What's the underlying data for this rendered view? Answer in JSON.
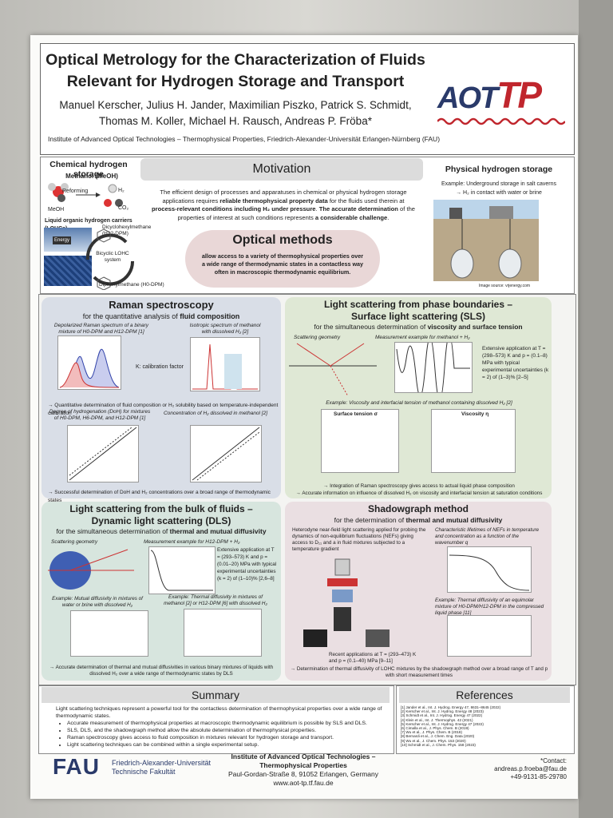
{
  "header": {
    "title_lines": [
      "Optical Metrology for the Characterization of Fluids",
      "Relevant for Hydrogen Storage and Transport"
    ],
    "authors": [
      "Manuel Kerscher, Julius H. Jander, Maximilian Piszko, Patrick S. Schmidt,",
      "Thomas M. Koller, Michael H. Rausch, Andreas P. Fröba*"
    ],
    "affiliation": "Institute of Advanced Optical Technologies – Thermophysical Properties, Friedrich-Alexander-Universität Erlangen-Nürnberg (FAU)",
    "logo": [
      "AOT",
      "TP"
    ]
  },
  "chemical": {
    "title": "Chemical hydrogen storage",
    "methanol": "Methanol (MeOH)",
    "reforming": "Reforming",
    "meoh": "MeOH",
    "h2": "H₂",
    "co2": "CO₂",
    "lohc": "Liquid organic hydrogen carriers (LOHCs)",
    "h12": "Dicyclohexylmethane (H12-DPM)",
    "system": "Bicyclic LOHC system",
    "h0": "Diphenylmethane (H0-DPM)",
    "energy": "Energy"
  },
  "motivation": {
    "title": "Motivation",
    "text": [
      "The efficient design of processes and apparatuses in chemical or physical hydrogen storage applications requires ",
      "reliable thermophysical property data",
      " for the fluids used therein at ",
      "process-relevant conditions including H₂ under pressure",
      ". ",
      "The accurate determination",
      " of the properties of interest at such conditions represents ",
      "a considerable challenge",
      "."
    ]
  },
  "optical": {
    "title": "Optical methods",
    "text": "allow access to a variety of thermophysical properties over a wide range of thermodynamic states in a contactless way often in macroscopic thermodynamic equilibrium."
  },
  "physical": {
    "title": "Physical hydrogen storage",
    "example": "Example: Underground storage in salt caverns",
    "bullet": "→ H₂ in contact with water or brine",
    "source": "Image source: vrjenergy.com"
  },
  "raman": {
    "title": "Raman spectroscopy",
    "subtitle": [
      "for the quantitative analysis of ",
      "fluid composition"
    ],
    "captions": [
      "Depolarized Raman spectrum of a binary mixture of H0-DPM and H12-DPM [1]",
      "Isotropic spectrum of methanol with dissolved H₂ [2]",
      "Degree of hydrogenation (DoH) for mixtures of H0-DPM, H6-DPM, and H12-DPM [1]",
      "Concentration of H₂ dissolved in methanol [2]"
    ],
    "calibration": "K: calibration factor",
    "notes": [
      "→ Quantitative determination of fluid composition or H₂ solubility based on temperature-independent calibration",
      "→ Successful determination of DoH and H₂ concentrations over a broad range of thermodynamic states"
    ]
  },
  "sls": {
    "title": [
      "Light scattering from phase boundaries –",
      "Surface light scattering (SLS)"
    ],
    "subtitle": [
      "for the simultaneous determination of ",
      "viscosity and surface tension"
    ],
    "captions": [
      "Scattering geometry",
      "Measurement example for methanol + H₂",
      "Example: Viscosity and interfacial tension of methanol containing dissolved H₂ [2]"
    ],
    "application": "Extensive application at T = (298–573) K and p = (0.1–8) MPa with typical experimental uncertainties (k = 2) of (1–3)% [2–5]",
    "plot_labels": [
      "Surface tension σ",
      "Viscosity η"
    ],
    "notes": [
      "→ Integration of Raman spectroscopy gives access to actual liquid phase composition",
      "→ Accurate information on influence of dissolved H₂ on viscosity and interfacial tension at saturation conditions"
    ]
  },
  "dls": {
    "title": [
      "Light scattering from the bulk of fluids –",
      "Dynamic light scattering (DLS)"
    ],
    "subtitle": [
      "for the simultaneous determination of ",
      "thermal and mutual diffusivity"
    ],
    "captions": [
      "Scattering geometry",
      "Measurement example for H12-DPM + H₂",
      "Example: Mutual diffusivity in mixtures of water or brine with dissolved H₂",
      "Example: Thermal diffusivity in mixtures of methanol [2] or H12-DPM [6] with dissolved H₂"
    ],
    "application": "Extensive application at T = (293–573) K and p = (0.01–20) MPa with typical experimental uncertainties (k = 2) of (1–10)% [2,6–8]",
    "note": "→ Accurate determination of thermal and mutual diffusivities in various binary mixtures of liquids with dissolved H₂ over a wide range of thermodynamic states by DLS"
  },
  "shadowgraph": {
    "title": "Shadowgraph method",
    "subtitle": [
      "for the determination of ",
      "thermal and mutual diffusivity"
    ],
    "intro": "Heterodyne near-field light scattering applied for probing the dynamics of non-equilibrium fluctuations (NEFs) giving access to D₁₁ and a in fluid mixtures subjected to a temperature gradient",
    "captions": [
      "Characteristic lifetimes of NEFs in temperature and concentration as a function of the wavenumber q",
      "Example: Thermal diffusivity of an equimolar mixture of H0-DPM/H12-DPM in the compressed liquid phase [11]"
    ],
    "application": "Recent applications at T = (293–473) K and p = (0.1–40) MPa [9–11]",
    "note": "→ Determination of thermal diffusivity of LOHC mixtures by the shadowgraph method over a broad range of T and p with short measurement times"
  },
  "summary": {
    "title": "Summary",
    "intro": "Light scattering techniques represent a powerful tool for the contactless determination of thermophysical properties over a wide range of thermodynamic states.",
    "items": [
      "Accurate measurement of thermophysical properties at macroscopic thermodynamic equilibrium is possible by SLS and DLS.",
      "SLS, DLS, and the shadowgraph method allow the absolute determination of thermophysical properties.",
      "Raman spectroscopy gives access to fluid composition in mixtures relevant for hydrogen storage and transport.",
      "Light scattering techniques can be combined within a single experimental setup."
    ]
  },
  "references": {
    "title": "References",
    "items": [
      "[1] Jander et al., Int. J. Hydrog. Energy 47, 8631–8645 (2022)",
      "[2] Kerscher et al., Int. J. Hydrog. Energy 48 (2023)",
      "[3] Schmidt et al., Int. J. Hydrog. Energy 47 (2022)",
      "[4] Klein et al., Int. J. Thermophys. 42 (2021)",
      "[5] Kerscher et al., Int. J. Hydrog. Energy 47 (2022)",
      "[6] Cimalla et al., J. Phys. Chem. B (2019)",
      "[7] Wu et al., J. Phys. Chem. B (2018)",
      "[8] Bernardi et al., J. Chem. Eng. Data (2020)",
      "[9] Wu et al., J. Chem. Phys. 153 (2020)",
      "[10] Schmidt et al., J. Chem. Phys. 158 (2023)"
    ]
  },
  "footer": {
    "fau": "FAU",
    "fau_name": "Friedrich-Alexander-Universität",
    "faculty": "Technische Fakultät",
    "institute": [
      "Institute of Advanced Optical Technologies –",
      "Thermophysical Properties"
    ],
    "address": "Paul-Gordan-Straße 8, 91052 Erlangen, Germany",
    "url": "www.aot-tp.tf.fau.de",
    "contact": "*Contact:",
    "email": "andreas.p.froeba@fau.de",
    "phone": "+49-9131-85-29780"
  }
}
